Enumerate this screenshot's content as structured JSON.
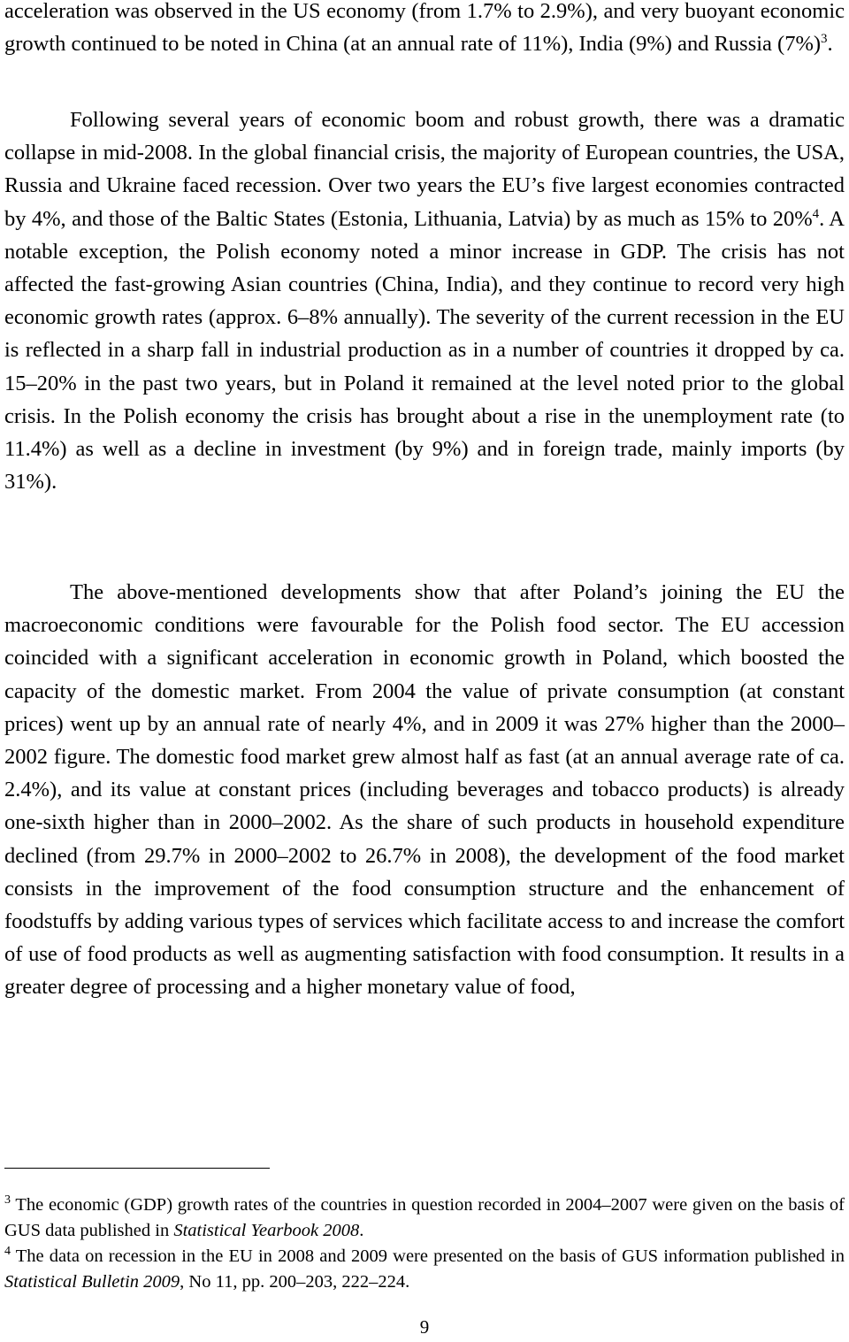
{
  "paragraphs": {
    "p1": {
      "text": "acceleration was observed in the US economy (from 1.7% to 2.9%), and very buoyant economic growth continued to be noted in China (at an annual rate of 11%), India (9%) and Russia (7%)",
      "ref": "3",
      "after": "."
    },
    "p2": {
      "before_ref": "Following several years of economic boom and robust growth, there was a dramatic collapse in mid-2008. In the global financial crisis, the majority of European countries, the USA, Russia and Ukraine faced recession. Over two years the EU’s five largest economies contracted by 4%, and those of the Baltic States (Estonia, Lithuania, Latvia) by as much as 15% to 20%",
      "ref": "4",
      "after_ref": ". A notable exception, the Polish economy noted a minor increase in GDP. The crisis has not affected the fast-growing Asian countries (China, India), and they continue to record very high economic growth rates (approx. 6–8% annually). The severity of the current recession in the EU is reflected in a sharp fall in industrial production as in a number of countries it dropped by ca. 15–20% in the past two years, but in Poland it remained at the level noted prior to the global crisis. In the Polish economy the crisis has brought about a rise in the unemployment rate (to 11.4%) as well as a decline in investment (by 9%) and in foreign trade, mainly imports (by 31%)."
    },
    "p3": {
      "text": "The above-mentioned developments show that after Poland’s joining the EU the macroeconomic conditions were favourable for the Polish food sector. The EU accession coincided with a significant acceleration in economic growth in Poland, which boosted the capacity of the domestic market. From 2004 the value of private consumption (at constant prices) went up by an annual rate of nearly 4%, and in 2009 it was 27% higher than the 2000–2002 figure. The domestic food market grew almost half as fast (at an annual average rate of ca. 2.4%), and its value at constant prices (including beverages and tobacco products) is already one-sixth higher than in 2000–2002. As the share of such products in household expenditure declined (from 29.7% in 2000–2002 to 26.7% in 2008), the development of the food market consists in the improvement of the food consumption structure and the enhancement of foodstuffs by adding various types of services which facilitate access to and increase the comfort of use of food products as well as augmenting satisfaction with food consumption. It results in a greater degree of processing and a higher monetary value of food,"
    }
  },
  "footnotes": [
    {
      "number": "3",
      "text": " The economic (GDP) growth rates of the countries in question recorded in 2004–2007 were given on the basis of GUS data published in ",
      "source": "Statistical Yearbook 2008",
      "tail": "."
    },
    {
      "number": "4",
      "text": " The data on recession in the EU in 2008 and 2009 were presented on the basis of GUS information published in ",
      "source": "Statistical Bulletin 2009",
      "tail": ", No 11, pp. 200–203, 222–224."
    }
  ],
  "page_number": "9"
}
